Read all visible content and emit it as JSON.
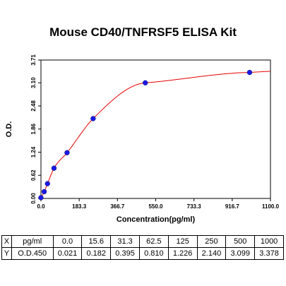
{
  "chart_data": {
    "type": "scatter",
    "title": "Mouse CD40/TNFRSF5 ELISA Kit",
    "xlabel": "Concentration(pg/ml)",
    "ylabel": "O.D.",
    "xlim": [
      0,
      1100
    ],
    "ylim": [
      0,
      3.71
    ],
    "x_ticks": [
      "0.0",
      "183.3",
      "366.7",
      "550.0",
      "733.3",
      "916.7",
      "1100.0"
    ],
    "y_ticks": [
      "0.00",
      "0.62",
      "1.24",
      "1.86",
      "2.48",
      "3.10",
      "3.71"
    ],
    "series": [
      {
        "x": [
          0,
          15.6,
          31.3,
          62.5,
          125,
          250,
          500,
          1000
        ],
        "y": [
          0.021,
          0.182,
          0.395,
          0.81,
          1.226,
          2.14,
          3.099,
          3.378
        ]
      }
    ],
    "point_color": "#1a1ae6",
    "curve_color": "#e60000"
  },
  "table": {
    "x_row": [
      "X",
      "pg/ml",
      "0.0",
      "15.6",
      "31.3",
      "62.5",
      "125",
      "250",
      "500",
      "1000"
    ],
    "y_row": [
      "Y",
      "O.D.450",
      "0.021",
      "0.182",
      "0.395",
      "0.810",
      "1.226",
      "2.140",
      "3.099",
      "3.378"
    ]
  }
}
